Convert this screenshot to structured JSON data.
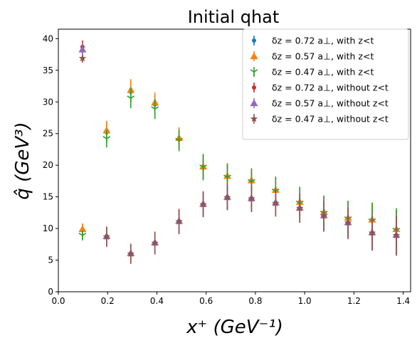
{
  "chart_data": {
    "type": "scatter",
    "title": "Initial qhat",
    "xlabel": "x⁺ (GeV⁻¹)",
    "ylabel": "q̂ (GeV³)",
    "xlim": [
      0.0,
      1.43
    ],
    "ylim": [
      0,
      41.5
    ],
    "xticks": [
      "0.0",
      "0.2",
      "0.4",
      "0.6",
      "0.8",
      "1.0",
      "1.2",
      "1.4"
    ],
    "yticks": [
      "0",
      "5",
      "10",
      "15",
      "20",
      "25",
      "30",
      "35",
      "40"
    ],
    "grid": false,
    "legend_position": "top-right",
    "series": [
      {
        "name": "δz = 0.72 a⊥, with z<t",
        "color": "#1f77b4",
        "marker": "circle",
        "points": [
          {
            "x": 0.098,
            "y": 9.8,
            "err": 0.8
          },
          {
            "x": 0.196,
            "y": 25.2,
            "err": 1.5
          },
          {
            "x": 0.294,
            "y": 31.6,
            "err": 1.7
          },
          {
            "x": 0.392,
            "y": 29.6,
            "err": 1.6
          },
          {
            "x": 0.49,
            "y": 24.1,
            "err": 1.6
          },
          {
            "x": 0.588,
            "y": 19.6,
            "err": 1.8
          },
          {
            "x": 0.686,
            "y": 18.2,
            "err": 1.8
          },
          {
            "x": 0.784,
            "y": 17.5,
            "err": 1.8
          },
          {
            "x": 0.882,
            "y": 16.0,
            "err": 2.0
          },
          {
            "x": 0.98,
            "y": 14.1,
            "err": 2.2
          },
          {
            "x": 1.078,
            "y": 12.5,
            "err": 2.5
          },
          {
            "x": 1.176,
            "y": 11.6,
            "err": 2.5
          },
          {
            "x": 1.274,
            "y": 11.3,
            "err": 2.6
          },
          {
            "x": 1.372,
            "y": 9.8,
            "err": 3.0
          }
        ]
      },
      {
        "name": "δz = 0.57 a⊥, with z<t",
        "color": "#ff7f0e",
        "marker": "triangle-up",
        "points": [
          {
            "x": 0.098,
            "y": 9.9,
            "err": 0.9
          },
          {
            "x": 0.196,
            "y": 25.5,
            "err": 1.5
          },
          {
            "x": 0.294,
            "y": 31.9,
            "err": 1.7
          },
          {
            "x": 0.392,
            "y": 29.9,
            "err": 1.6
          },
          {
            "x": 0.49,
            "y": 24.3,
            "err": 1.7
          },
          {
            "x": 0.588,
            "y": 19.8,
            "err": 1.8
          },
          {
            "x": 0.686,
            "y": 18.3,
            "err": 1.9
          },
          {
            "x": 0.784,
            "y": 17.6,
            "err": 1.9
          },
          {
            "x": 0.882,
            "y": 16.1,
            "err": 2.0
          },
          {
            "x": 0.98,
            "y": 14.2,
            "err": 2.3
          },
          {
            "x": 1.078,
            "y": 12.6,
            "err": 2.5
          },
          {
            "x": 1.176,
            "y": 11.7,
            "err": 2.6
          },
          {
            "x": 1.274,
            "y": 11.4,
            "err": 2.7
          },
          {
            "x": 1.372,
            "y": 9.9,
            "err": 3.0
          }
        ]
      },
      {
        "name": "δz = 0.47 a⊥, with z<t",
        "color": "#2ca02c",
        "marker": "tri-down",
        "points": [
          {
            "x": 0.098,
            "y": 8.9,
            "err": 0.8
          },
          {
            "x": 0.196,
            "y": 24.2,
            "err": 1.4
          },
          {
            "x": 0.294,
            "y": 30.6,
            "err": 1.6
          },
          {
            "x": 0.392,
            "y": 28.9,
            "err": 1.6
          },
          {
            "x": 0.49,
            "y": 23.9,
            "err": 1.7
          },
          {
            "x": 0.588,
            "y": 19.7,
            "err": 2.1
          },
          {
            "x": 0.686,
            "y": 18.1,
            "err": 2.2
          },
          {
            "x": 0.784,
            "y": 17.4,
            "err": 2.1
          },
          {
            "x": 0.882,
            "y": 15.9,
            "err": 2.3
          },
          {
            "x": 0.98,
            "y": 14.0,
            "err": 2.6
          },
          {
            "x": 1.078,
            "y": 12.4,
            "err": 2.8
          },
          {
            "x": 1.176,
            "y": 11.5,
            "err": 2.9
          },
          {
            "x": 1.274,
            "y": 11.2,
            "err": 2.9
          },
          {
            "x": 1.372,
            "y": 9.7,
            "err": 3.5
          }
        ]
      },
      {
        "name": "δz = 0.72 a⊥, without z<t",
        "color": "#d62728",
        "marker": "circle",
        "points": [
          {
            "x": 0.098,
            "y": 38.7,
            "err": 1.0
          },
          {
            "x": 0.196,
            "y": 8.7,
            "err": 1.5
          },
          {
            "x": 0.294,
            "y": 6.0,
            "err": 1.5
          },
          {
            "x": 0.392,
            "y": 7.7,
            "err": 1.7
          },
          {
            "x": 0.49,
            "y": 11.1,
            "err": 1.9
          },
          {
            "x": 0.588,
            "y": 13.8,
            "err": 2.0
          },
          {
            "x": 0.686,
            "y": 14.9,
            "err": 2.0
          },
          {
            "x": 0.784,
            "y": 14.8,
            "err": 2.1
          },
          {
            "x": 0.882,
            "y": 14.1,
            "err": 2.2
          },
          {
            "x": 0.98,
            "y": 13.2,
            "err": 2.3
          },
          {
            "x": 1.078,
            "y": 12.0,
            "err": 2.5
          },
          {
            "x": 1.176,
            "y": 10.9,
            "err": 2.6
          },
          {
            "x": 1.274,
            "y": 9.3,
            "err": 2.8
          },
          {
            "x": 1.372,
            "y": 8.9,
            "err": 3.2
          }
        ]
      },
      {
        "name": "δz = 0.57 a⊥, without z<t",
        "color": "#9467bd",
        "marker": "triangle-up",
        "points": [
          {
            "x": 0.098,
            "y": 38.3,
            "err": 1.0
          },
          {
            "x": 0.196,
            "y": 8.8,
            "err": 1.5
          },
          {
            "x": 0.294,
            "y": 6.1,
            "err": 1.5
          },
          {
            "x": 0.392,
            "y": 7.8,
            "err": 1.7
          },
          {
            "x": 0.49,
            "y": 11.2,
            "err": 1.9
          },
          {
            "x": 0.588,
            "y": 13.9,
            "err": 2.0
          },
          {
            "x": 0.686,
            "y": 15.0,
            "err": 2.0
          },
          {
            "x": 0.784,
            "y": 14.8,
            "err": 2.1
          },
          {
            "x": 0.882,
            "y": 14.1,
            "err": 2.2
          },
          {
            "x": 0.98,
            "y": 13.3,
            "err": 2.3
          },
          {
            "x": 1.078,
            "y": 12.1,
            "err": 2.5
          },
          {
            "x": 1.176,
            "y": 11.0,
            "err": 2.6
          },
          {
            "x": 1.274,
            "y": 9.4,
            "err": 2.8
          },
          {
            "x": 1.372,
            "y": 9.0,
            "err": 3.2
          }
        ]
      },
      {
        "name": "δz = 0.47 a⊥, without z<t",
        "color": "#8c564b",
        "marker": "star",
        "points": [
          {
            "x": 0.098,
            "y": 36.9,
            "err": 0.7
          },
          {
            "x": 0.196,
            "y": 8.7,
            "err": 1.6
          },
          {
            "x": 0.294,
            "y": 6.0,
            "err": 1.6
          },
          {
            "x": 0.392,
            "y": 7.7,
            "err": 1.8
          },
          {
            "x": 0.49,
            "y": 11.1,
            "err": 2.0
          },
          {
            "x": 0.588,
            "y": 13.8,
            "err": 2.0
          },
          {
            "x": 0.686,
            "y": 14.9,
            "err": 2.0
          },
          {
            "x": 0.784,
            "y": 14.7,
            "err": 2.1
          },
          {
            "x": 0.882,
            "y": 14.0,
            "err": 2.1
          },
          {
            "x": 0.98,
            "y": 13.2,
            "err": 2.3
          },
          {
            "x": 1.078,
            "y": 12.0,
            "err": 2.4
          },
          {
            "x": 1.176,
            "y": 10.9,
            "err": 2.4
          },
          {
            "x": 1.274,
            "y": 9.3,
            "err": 2.7
          },
          {
            "x": 1.372,
            "y": 8.9,
            "err": 3.1
          }
        ]
      }
    ]
  }
}
